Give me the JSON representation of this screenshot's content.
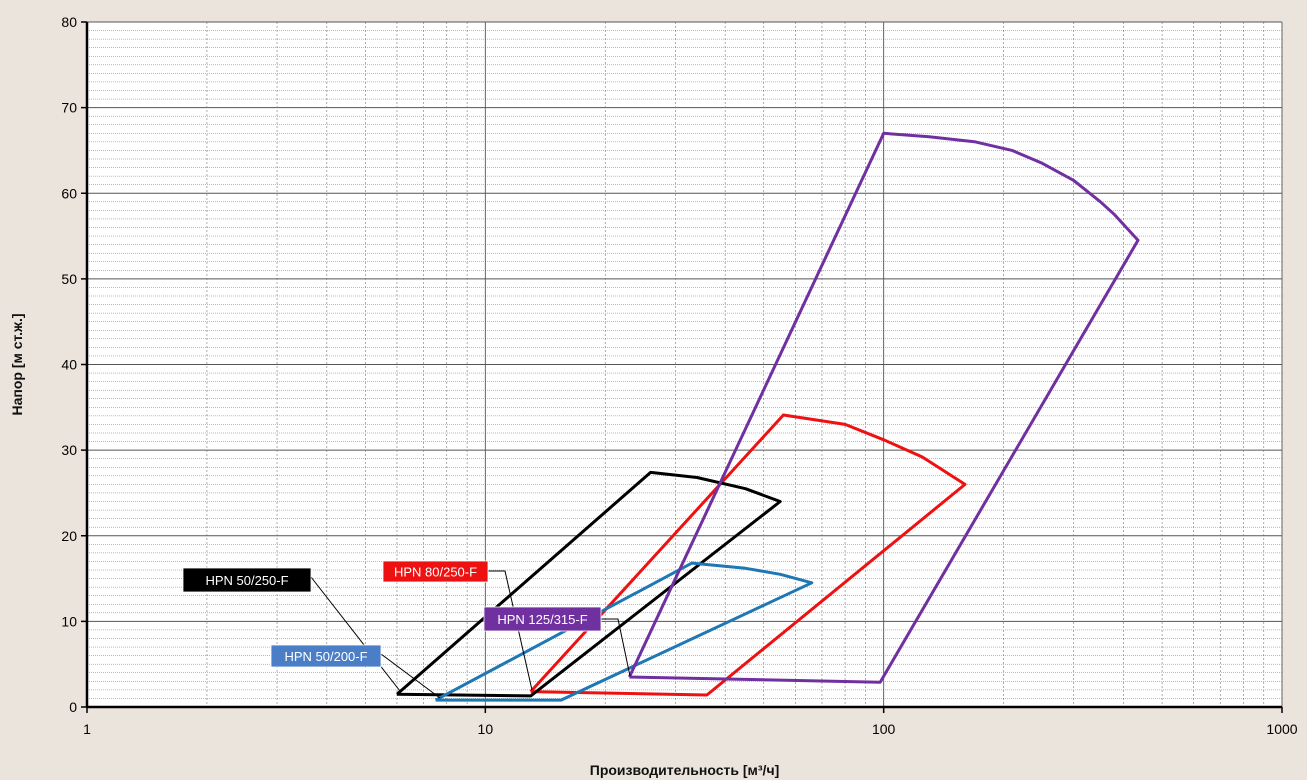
{
  "chart_data": {
    "type": "line",
    "title": "",
    "xlabel": "Производительность [м³/ч]",
    "ylabel": "Напор [м ст.ж.]",
    "x_scale": "log",
    "xlim": [
      1,
      1000
    ],
    "ylim": [
      0,
      80
    ],
    "x_ticks": [
      "1",
      "10",
      "100",
      "1000"
    ],
    "y_ticks": [
      "0",
      "10",
      "20",
      "30",
      "40",
      "50",
      "60",
      "70",
      "80"
    ],
    "grid": true,
    "background_color": "#ebe4dc",
    "series": [
      {
        "name": "HPN 50/250-F",
        "color": "#000000",
        "label_box_color": "#000000",
        "x": [
          6,
          26,
          34,
          45,
          55,
          13,
          6
        ],
        "y": [
          1.5,
          27.4,
          26.8,
          25.5,
          24,
          1.3,
          1.5
        ]
      },
      {
        "name": "HPN 50/200-F",
        "color": "#1f77b4",
        "label_box_color": "#4a7fc8",
        "x": [
          7.5,
          33,
          45,
          55,
          66,
          15.5,
          7.5
        ],
        "y": [
          0.8,
          16.8,
          16.2,
          15.5,
          14.5,
          0.8,
          0.8
        ]
      },
      {
        "name": "HPN 80/250-F",
        "color": "#ee1111",
        "label_box_color": "#ee1111",
        "x": [
          13,
          56,
          80,
          100,
          125,
          160,
          36,
          13
        ],
        "y": [
          1.8,
          34.1,
          33,
          31.2,
          29.2,
          26,
          1.4,
          1.8
        ]
      },
      {
        "name": "HPN 125/315-F",
        "color": "#7030a0",
        "label_box_color": "#7030a0",
        "x": [
          23,
          100,
          130,
          170,
          210,
          250,
          300,
          350,
          380,
          435,
          98,
          23
        ],
        "y": [
          3.5,
          67,
          66.6,
          66,
          65,
          63.5,
          61.5,
          59,
          57.5,
          54.5,
          2.9,
          3.5
        ]
      }
    ]
  }
}
